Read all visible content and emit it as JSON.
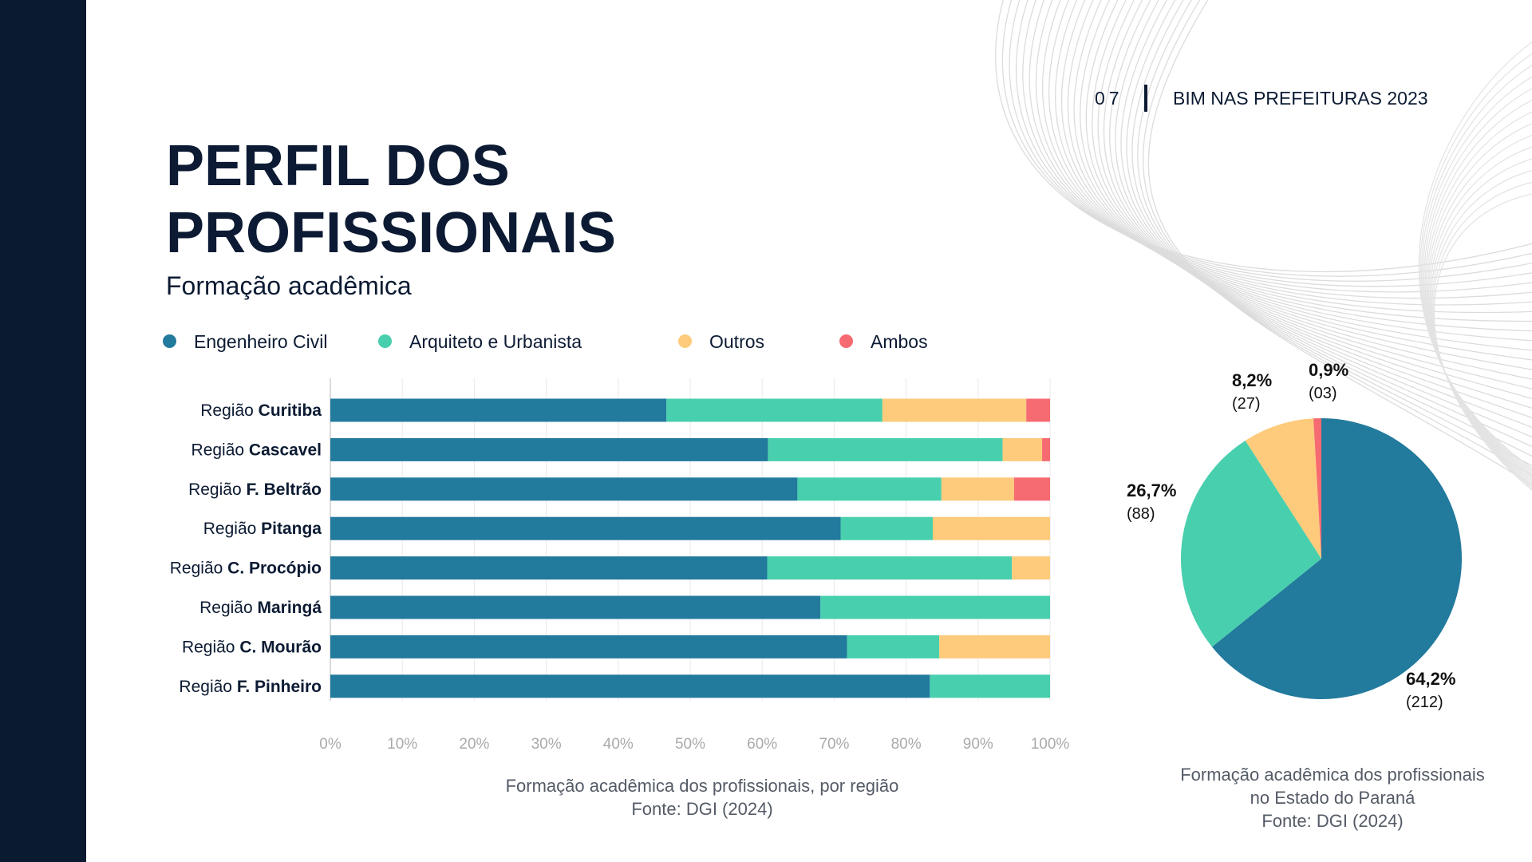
{
  "header": {
    "page_number": "07",
    "publication": "BIM NAS PREFEITURAS 2023"
  },
  "title_line1": "PERFIL DOS",
  "title_line2": "PROFISSIONAIS",
  "subtitle": "Formação acadêmica",
  "colors": {
    "sidebar": "#0a1a31",
    "engenheiro": "#227a9d",
    "arquiteto": "#48cfad",
    "outros": "#fdcb7b",
    "ambos": "#f66a72"
  },
  "legend": [
    {
      "label": "Engenheiro Civil",
      "color": "#227a9d"
    },
    {
      "label": "Arquiteto e Urbanista",
      "color": "#48cfad"
    },
    {
      "label": "Outros",
      "color": "#fdcb7b"
    },
    {
      "label": "Ambos",
      "color": "#f66a72"
    }
  ],
  "chart_data": [
    {
      "type": "bar",
      "orientation": "horizontal",
      "stacked": true,
      "categories": [
        {
          "prefix": "Região ",
          "name": "Curitiba"
        },
        {
          "prefix": "Região ",
          "name": "Cascavel"
        },
        {
          "prefix": "Região ",
          "name": "F. Beltrão"
        },
        {
          "prefix": "Região ",
          "name": "Pitanga"
        },
        {
          "prefix": "Região ",
          "name": "C. Procópio"
        },
        {
          "prefix": "Região ",
          "name": "Maringá"
        },
        {
          "prefix": "Região ",
          "name": "C. Mourão"
        },
        {
          "prefix": "Região ",
          "name": "F. Pinheiro"
        }
      ],
      "series": [
        {
          "name": "Engenheiro Civil",
          "color": "#227a9d",
          "values": [
            46.7,
            60.8,
            64.9,
            70.9,
            60.7,
            68.1,
            71.8,
            83.3
          ]
        },
        {
          "name": "Arquiteto e Urbanista",
          "color": "#48cfad",
          "values": [
            30.0,
            32.6,
            20.0,
            12.8,
            34.0,
            31.9,
            12.8,
            16.7
          ]
        },
        {
          "name": "Outros",
          "color": "#fdcb7b",
          "values": [
            20.0,
            5.5,
            10.1,
            16.3,
            5.3,
            0,
            15.4,
            0
          ]
        },
        {
          "name": "Ambos",
          "color": "#f66a72",
          "values": [
            3.3,
            1.1,
            5.0,
            0,
            0,
            0,
            0,
            0
          ]
        }
      ],
      "x_ticks": [
        "0%",
        "10%",
        "20%",
        "30%",
        "40%",
        "50%",
        "60%",
        "70%",
        "80%",
        "90%",
        "100%"
      ],
      "xlim": [
        0,
        100
      ],
      "grid": true,
      "caption_line1": "Formação acadêmica dos profissionais, por região",
      "caption_line2": "Fonte: DGI (2024)"
    },
    {
      "type": "pie",
      "slices": [
        {
          "name": "Engenheiro Civil",
          "percent": 64.2,
          "label": "64,2%",
          "count": "(212)",
          "color": "#227a9d"
        },
        {
          "name": "Arquiteto e Urbanista",
          "percent": 26.7,
          "label": "26,7%",
          "count": "(88)",
          "color": "#48cfad"
        },
        {
          "name": "Outros",
          "percent": 8.2,
          "label": "8,2%",
          "count": "(27)",
          "color": "#fdcb7b"
        },
        {
          "name": "Ambos",
          "percent": 0.9,
          "label": "0,9%",
          "count": "(03)",
          "color": "#f66a72"
        }
      ],
      "caption_line1": "Formação acadêmica dos profissionais",
      "caption_line2": "no Estado do Paraná",
      "caption_line3": "Fonte: DGI (2024)"
    }
  ]
}
